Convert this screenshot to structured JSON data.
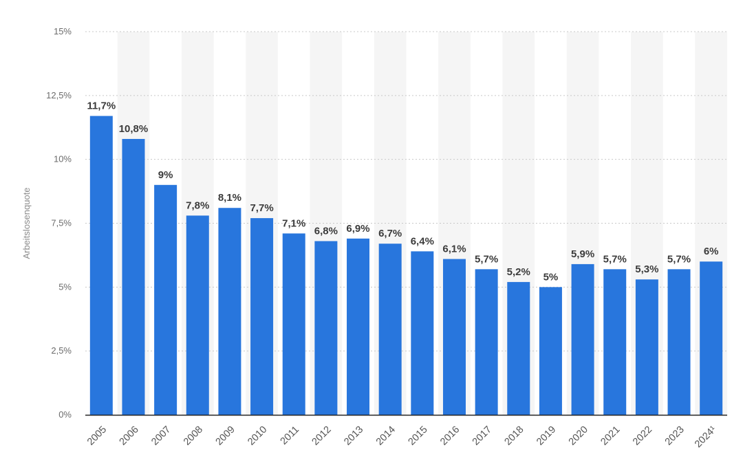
{
  "chart_data": {
    "type": "bar",
    "title": "",
    "xlabel": "",
    "ylabel": "Arbeitslosenquote",
    "ylim": [
      0,
      15
    ],
    "y_ticks": [
      0,
      2.5,
      5,
      7.5,
      10,
      12.5,
      15
    ],
    "y_tick_labels": [
      "0%",
      "2,5%",
      "5%",
      "7,5%",
      "10%",
      "12,5%",
      "15%"
    ],
    "grid": true,
    "categories": [
      "2005",
      "2006",
      "2007",
      "2008",
      "2009",
      "2010",
      "2011",
      "2012",
      "2013",
      "2014",
      "2015",
      "2016",
      "2017",
      "2018",
      "2019",
      "2020",
      "2021",
      "2022",
      "2023",
      "2024¹"
    ],
    "values": [
      11.7,
      10.8,
      9.0,
      7.8,
      8.1,
      7.7,
      7.1,
      6.8,
      6.9,
      6.7,
      6.4,
      6.1,
      5.7,
      5.2,
      5.0,
      5.9,
      5.7,
      5.3,
      5.7,
      6.0
    ],
    "value_labels": [
      "11,7%",
      "10,8%",
      "9%",
      "7,8%",
      "8,1%",
      "7,7%",
      "7,1%",
      "6,8%",
      "6,9%",
      "6,7%",
      "6,4%",
      "6,1%",
      "5,7%",
      "5,2%",
      "5%",
      "5,9%",
      "5,7%",
      "5,3%",
      "5,7%",
      "6%"
    ],
    "colors": {
      "bar": "#2876dd",
      "band": "#f5f5f5",
      "grid": "#c8c8c8",
      "axis": "#222222"
    }
  }
}
